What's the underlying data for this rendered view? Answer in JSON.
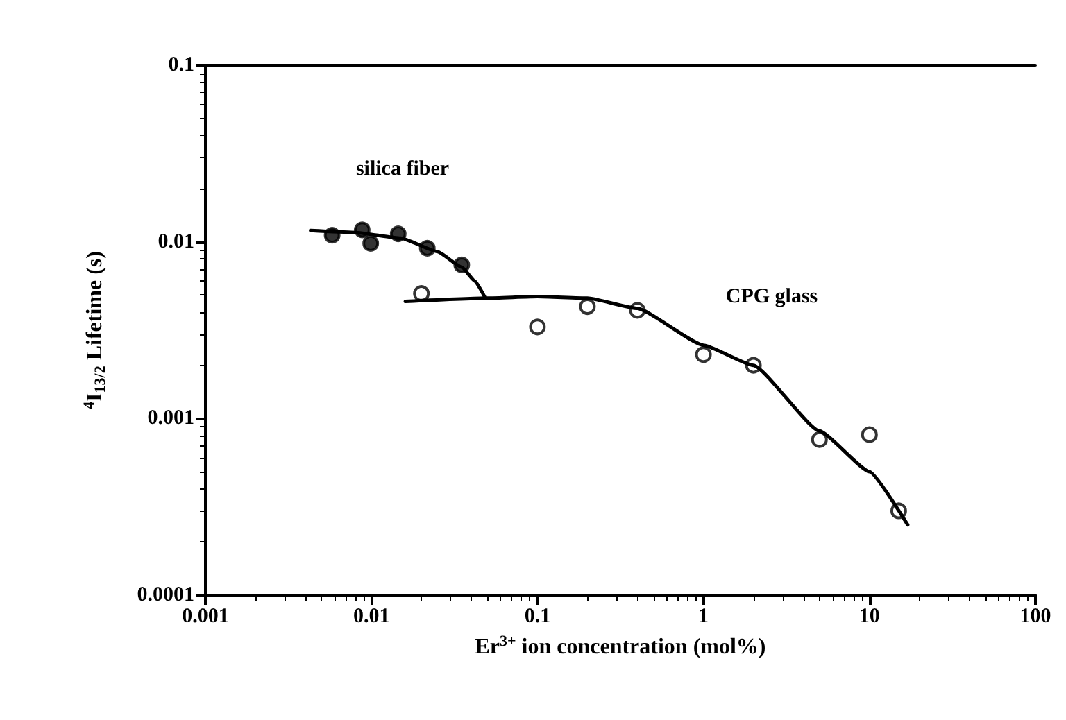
{
  "chart_data": {
    "type": "scatter",
    "xlabel": "Er$^{3+}$ ion concentration (mol%)",
    "ylabel": "$^{4}$I$_{13/2}$ Lifetime (s)",
    "log": "xy",
    "grid": false,
    "xlim": [
      0.001,
      100
    ],
    "xticks": [
      0.001,
      0.01,
      0.1,
      1,
      10,
      100
    ],
    "ylim": [
      0.0001,
      0.1
    ],
    "yticks": [
      0.0001,
      0.001,
      0.01,
      0.1
    ],
    "series": [
      {
        "marker": "circle",
        "color": "#000000",
        "x": [
          0.0058,
          0.0088,
          0.0099,
          0.0145,
          0.0217,
          0.035
        ],
        "values": [
          0.0109,
          0.0117,
          0.0098,
          0.0111,
          0.0092,
          0.0074
        ]
      },
      {
        "marker": "circle",
        "color": "#ffffff",
        "x": [
          0.02,
          0.1,
          0.2,
          0.4,
          1,
          2,
          5,
          10,
          15
        ],
        "values": [
          0.0051,
          0.0033,
          0.0043,
          0.0041,
          0.0023,
          0.002,
          0.00076,
          0.00081,
          0.0003
        ]
      },
      {
        "type": "line",
        "marker": "none",
        "line_style": "solid",
        "color": "#000000",
        "x": [
          0.0043,
          0.008,
          0.015,
          0.025,
          0.035,
          0.042,
          0.048
        ],
        "values": [
          0.0116,
          0.0113,
          0.0105,
          0.0088,
          0.0072,
          0.006,
          0.0049
        ]
      },
      {
        "type": "line",
        "marker": "none",
        "line_style": "solid",
        "color": "#000000",
        "x": [
          0.016,
          0.05,
          0.1,
          0.2,
          0.4,
          1,
          2,
          5,
          10,
          17
        ],
        "values": [
          0.0046,
          0.0048,
          0.0049,
          0.0048,
          0.0042,
          0.0026,
          0.002,
          0.00085,
          0.0005,
          0.00025
        ]
      }
    ],
    "annotations": [
      "silica fiber",
      "CPG glass"
    ]
  }
}
